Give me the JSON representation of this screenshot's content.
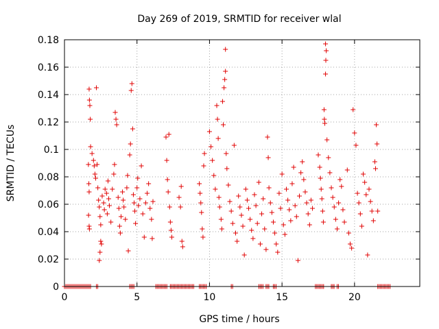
{
  "chart_data": {
    "type": "scatter",
    "title": "Day 269 of 2019, SRMTID for receiver wlal",
    "xlabel": "GPS time / hours",
    "ylabel": "SRMTID / TECUs",
    "xlim": [
      0,
      24.5
    ],
    "ylim": [
      0,
      0.18
    ],
    "xticks": [
      0,
      5,
      10,
      15,
      20
    ],
    "xtick_labels": [
      "0",
      "5",
      "10",
      "15",
      "20"
    ],
    "yticks": [
      0,
      0.02,
      0.04,
      0.06,
      0.08,
      0.1,
      0.12,
      0.14,
      0.16,
      0.18
    ],
    "ytick_labels": [
      "0",
      "0.02",
      "0.04",
      "0.06",
      "0.08",
      "0.1",
      "0.12",
      "0.14",
      "0.16",
      "0.18"
    ],
    "grid": true,
    "marker": "plus",
    "series": [
      {
        "name": "SRMTID",
        "color": "#e00000",
        "points": [
          [
            1.7,
            0.144
          ],
          [
            1.72,
            0.136
          ],
          [
            1.75,
            0.132
          ],
          [
            1.78,
            0.122
          ],
          [
            1.8,
            0.102
          ],
          [
            1.65,
            0.089
          ],
          [
            1.68,
            0.075
          ],
          [
            1.7,
            0.069
          ],
          [
            1.66,
            0.052
          ],
          [
            1.7,
            0.044
          ],
          [
            1.72,
            0.042
          ],
          [
            1.9,
            0.097
          ],
          [
            2.0,
            0.092
          ],
          [
            2.05,
            0.088
          ],
          [
            2.1,
            0.082
          ],
          [
            2.15,
            0.079
          ],
          [
            2.2,
            0.145
          ],
          [
            2.25,
            0.089
          ],
          [
            2.3,
            0.072
          ],
          [
            2.35,
            0.063
          ],
          [
            2.4,
            0.058
          ],
          [
            2.45,
            0.051
          ],
          [
            2.5,
            0.045
          ],
          [
            2.5,
            0.033
          ],
          [
            2.45,
            0.025
          ],
          [
            2.4,
            0.019
          ],
          [
            2.55,
            0.031
          ],
          [
            2.6,
            0.066
          ],
          [
            2.7,
            0.061
          ],
          [
            2.75,
            0.056
          ],
          [
            2.8,
            0.071
          ],
          [
            2.9,
            0.068
          ],
          [
            2.95,
            0.053
          ],
          [
            3.0,
            0.077
          ],
          [
            3.05,
            0.064
          ],
          [
            3.1,
            0.059
          ],
          [
            3.2,
            0.047
          ],
          [
            3.3,
            0.071
          ],
          [
            3.4,
            0.082
          ],
          [
            3.5,
            0.127
          ],
          [
            3.55,
            0.122
          ],
          [
            3.6,
            0.118
          ],
          [
            3.45,
            0.089
          ],
          [
            3.7,
            0.065
          ],
          [
            3.75,
            0.057
          ],
          [
            3.8,
            0.044
          ],
          [
            3.85,
            0.039
          ],
          [
            3.9,
            0.051
          ],
          [
            4.0,
            0.069
          ],
          [
            4.05,
            0.063
          ],
          [
            4.1,
            0.058
          ],
          [
            4.2,
            0.049
          ],
          [
            4.3,
            0.072
          ],
          [
            4.35,
            0.081
          ],
          [
            4.4,
            0.026
          ],
          [
            4.5,
            0.096
          ],
          [
            4.55,
            0.104
          ],
          [
            4.6,
            0.143
          ],
          [
            4.65,
            0.148
          ],
          [
            4.7,
            0.115
          ],
          [
            4.75,
            0.067
          ],
          [
            4.8,
            0.061
          ],
          [
            4.85,
            0.055
          ],
          [
            4.9,
            0.046
          ],
          [
            5.0,
            0.072
          ],
          [
            5.05,
            0.079
          ],
          [
            5.1,
            0.059
          ],
          [
            5.2,
            0.064
          ],
          [
            5.3,
            0.088
          ],
          [
            5.4,
            0.053
          ],
          [
            5.5,
            0.036
          ],
          [
            5.6,
            0.061
          ],
          [
            5.7,
            0.068
          ],
          [
            5.8,
            0.075
          ],
          [
            5.9,
            0.057
          ],
          [
            6.0,
            0.049
          ],
          [
            6.05,
            0.035
          ],
          [
            6.1,
            0.062
          ],
          [
            7.0,
            0.109
          ],
          [
            7.05,
            0.092
          ],
          [
            7.1,
            0.078
          ],
          [
            7.15,
            0.069
          ],
          [
            7.2,
            0.111
          ],
          [
            7.25,
            0.058
          ],
          [
            7.3,
            0.047
          ],
          [
            7.35,
            0.041
          ],
          [
            7.4,
            0.036
          ],
          [
            7.9,
            0.065
          ],
          [
            8.0,
            0.058
          ],
          [
            8.05,
            0.073
          ],
          [
            8.1,
            0.033
          ],
          [
            8.15,
            0.029
          ],
          [
            9.3,
            0.075
          ],
          [
            9.35,
            0.068
          ],
          [
            9.4,
            0.061
          ],
          [
            9.45,
            0.054
          ],
          [
            9.5,
            0.042
          ],
          [
            9.55,
            0.036
          ],
          [
            9.6,
            0.088
          ],
          [
            9.65,
            0.097
          ],
          [
            10.0,
            0.113
          ],
          [
            10.1,
            0.102
          ],
          [
            10.2,
            0.092
          ],
          [
            10.3,
            0.081
          ],
          [
            10.4,
            0.071
          ],
          [
            10.5,
            0.132
          ],
          [
            10.55,
            0.122
          ],
          [
            10.6,
            0.108
          ],
          [
            10.65,
            0.065
          ],
          [
            10.7,
            0.058
          ],
          [
            10.8,
            0.049
          ],
          [
            10.85,
            0.042
          ],
          [
            10.9,
            0.135
          ],
          [
            10.95,
            0.118
          ],
          [
            11.0,
            0.145
          ],
          [
            11.05,
            0.151
          ],
          [
            11.1,
            0.157
          ],
          [
            11.1,
            0.173
          ],
          [
            11.15,
            0.097
          ],
          [
            11.2,
            0.086
          ],
          [
            11.3,
            0.074
          ],
          [
            11.4,
            0.062
          ],
          [
            11.5,
            0.055
          ],
          [
            11.6,
            0.046
          ],
          [
            11.7,
            0.103
          ],
          [
            11.8,
            0.039
          ],
          [
            11.9,
            0.033
          ],
          [
            12.0,
            0.066
          ],
          [
            12.1,
            0.058
          ],
          [
            12.2,
            0.052
          ],
          [
            12.3,
            0.044
          ],
          [
            12.4,
            0.023
          ],
          [
            12.5,
            0.071
          ],
          [
            12.6,
            0.063
          ],
          [
            12.7,
            0.057
          ],
          [
            12.8,
            0.049
          ],
          [
            12.9,
            0.041
          ],
          [
            13.0,
            0.035
          ],
          [
            13.1,
            0.067
          ],
          [
            13.2,
            0.059
          ],
          [
            13.3,
            0.046
          ],
          [
            13.4,
            0.076
          ],
          [
            13.5,
            0.031
          ],
          [
            13.6,
            0.053
          ],
          [
            13.7,
            0.064
          ],
          [
            13.8,
            0.042
          ],
          [
            13.9,
            0.027
          ],
          [
            14.0,
            0.109
          ],
          [
            14.05,
            0.094
          ],
          [
            14.1,
            0.072
          ],
          [
            14.2,
            0.061
          ],
          [
            14.3,
            0.054
          ],
          [
            14.4,
            0.047
          ],
          [
            14.5,
            0.039
          ],
          [
            14.6,
            0.031
          ],
          [
            14.7,
            0.025
          ],
          [
            14.8,
            0.068
          ],
          [
            14.9,
            0.057
          ],
          [
            15.0,
            0.082
          ],
          [
            15.1,
            0.045
          ],
          [
            15.2,
            0.038
          ],
          [
            15.3,
            0.071
          ],
          [
            15.4,
            0.063
          ],
          [
            15.5,
            0.056
          ],
          [
            15.6,
            0.048
          ],
          [
            15.7,
            0.075
          ],
          [
            15.8,
            0.087
          ],
          [
            15.9,
            0.059
          ],
          [
            16.0,
            0.051
          ],
          [
            16.1,
            0.019
          ],
          [
            16.2,
            0.066
          ],
          [
            16.3,
            0.083
          ],
          [
            16.4,
            0.091
          ],
          [
            16.5,
            0.078
          ],
          [
            16.6,
            0.069
          ],
          [
            16.7,
            0.061
          ],
          [
            16.8,
            0.053
          ],
          [
            16.9,
            0.045
          ],
          [
            17.0,
            0.063
          ],
          [
            17.1,
            0.057
          ],
          [
            17.5,
            0.096
          ],
          [
            17.6,
            0.087
          ],
          [
            17.65,
            0.079
          ],
          [
            17.7,
            0.071
          ],
          [
            17.75,
            0.064
          ],
          [
            17.8,
            0.055
          ],
          [
            17.85,
            0.047
          ],
          [
            17.9,
            0.129
          ],
          [
            17.92,
            0.122
          ],
          [
            17.95,
            0.119
          ],
          [
            18.0,
            0.155
          ],
          [
            18.02,
            0.165
          ],
          [
            18.05,
            0.172
          ],
          [
            18.0,
            0.177
          ],
          [
            18.1,
            0.107
          ],
          [
            18.2,
            0.094
          ],
          [
            18.3,
            0.083
          ],
          [
            18.4,
            0.072
          ],
          [
            18.5,
            0.065
          ],
          [
            18.6,
            0.058
          ],
          [
            18.7,
            0.049
          ],
          [
            18.8,
            0.042
          ],
          [
            18.9,
            0.061
          ],
          [
            19.0,
            0.078
          ],
          [
            19.1,
            0.073
          ],
          [
            19.2,
            0.056
          ],
          [
            19.3,
            0.047
          ],
          [
            19.5,
            0.085
          ],
          [
            19.6,
            0.039
          ],
          [
            19.7,
            0.031
          ],
          [
            19.8,
            0.028
          ],
          [
            19.9,
            0.129
          ],
          [
            20.0,
            0.112
          ],
          [
            20.1,
            0.103
          ],
          [
            20.2,
            0.068
          ],
          [
            20.3,
            0.061
          ],
          [
            20.4,
            0.053
          ],
          [
            20.5,
            0.044
          ],
          [
            20.6,
            0.082
          ],
          [
            20.7,
            0.076
          ],
          [
            20.8,
            0.067
          ],
          [
            20.9,
            0.023
          ],
          [
            21.0,
            0.071
          ],
          [
            21.1,
            0.062
          ],
          [
            21.2,
            0.055
          ],
          [
            21.3,
            0.048
          ],
          [
            21.4,
            0.091
          ],
          [
            21.45,
            0.086
          ],
          [
            21.5,
            0.118
          ],
          [
            21.55,
            0.104
          ],
          [
            21.6,
            0.055
          ]
        ],
        "zero_intervals": [
          [
            0.0,
            1.8
          ],
          [
            2.2,
            2.3
          ],
          [
            4.5,
            4.8
          ],
          [
            6.3,
            7.1
          ],
          [
            7.3,
            9.0
          ],
          [
            9.3,
            9.8
          ],
          [
            11.5,
            11.6
          ],
          [
            13.4,
            13.7
          ],
          [
            13.9,
            14.1
          ],
          [
            14.4,
            14.6
          ],
          [
            17.3,
            17.9
          ],
          [
            18.4,
            18.6
          ],
          [
            18.8,
            18.9
          ],
          [
            21.6,
            22.5
          ]
        ]
      }
    ]
  }
}
